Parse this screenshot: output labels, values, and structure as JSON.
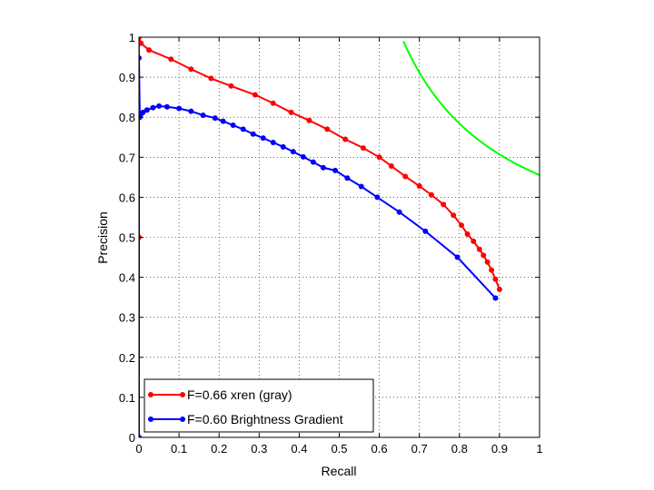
{
  "chart_data": {
    "type": "line",
    "title": "",
    "xlabel": "Recall",
    "ylabel": "Precision",
    "xlim": [
      0,
      1
    ],
    "ylim": [
      0,
      1
    ],
    "grid": true,
    "grid_style": "dotted",
    "legend_position": "bottom-left",
    "xticks": [
      "0",
      "0.1",
      "0.2",
      "0.3",
      "0.4",
      "0.5",
      "0.6",
      "0.7",
      "0.8",
      "0.9",
      "1"
    ],
    "yticks": [
      "0",
      "0.1",
      "0.2",
      "0.3",
      "0.4",
      "0.5",
      "0.6",
      "0.7",
      "0.8",
      "0.9",
      "1"
    ],
    "series": [
      {
        "name": "F=0.66 xren (gray)",
        "color": "#ff0000",
        "marker": "dot",
        "x": [
          0.0,
          0.0,
          0.0,
          0.005,
          0.025,
          0.08,
          0.13,
          0.18,
          0.23,
          0.29,
          0.335,
          0.38,
          0.425,
          0.47,
          0.515,
          0.56,
          0.6,
          0.63,
          0.665,
          0.7,
          0.73,
          0.76,
          0.785,
          0.805,
          0.82,
          0.835,
          0.85,
          0.86,
          0.87,
          0.88,
          0.89,
          0.9
        ],
        "y": [
          0.0,
          0.5,
          1.0,
          0.985,
          0.968,
          0.945,
          0.92,
          0.897,
          0.878,
          0.856,
          0.835,
          0.812,
          0.792,
          0.77,
          0.745,
          0.723,
          0.7,
          0.678,
          0.652,
          0.628,
          0.606,
          0.582,
          0.555,
          0.53,
          0.508,
          0.49,
          0.47,
          0.455,
          0.438,
          0.418,
          0.395,
          0.37
        ]
      },
      {
        "name": "F=0.60 Brightness Gradient",
        "color": "#0000ff",
        "marker": "dot",
        "x": [
          0.0,
          0.0,
          0.002,
          0.005,
          0.01,
          0.02,
          0.035,
          0.05,
          0.07,
          0.1,
          0.13,
          0.16,
          0.19,
          0.21,
          0.235,
          0.26,
          0.285,
          0.31,
          0.335,
          0.36,
          0.385,
          0.41,
          0.435,
          0.46,
          0.49,
          0.52,
          0.555,
          0.595,
          0.65,
          0.715,
          0.795,
          0.89
        ],
        "y": [
          0.0,
          0.948,
          0.8,
          0.808,
          0.812,
          0.818,
          0.824,
          0.828,
          0.826,
          0.822,
          0.815,
          0.805,
          0.798,
          0.79,
          0.78,
          0.77,
          0.758,
          0.748,
          0.737,
          0.726,
          0.714,
          0.701,
          0.688,
          0.674,
          0.667,
          0.648,
          0.627,
          0.6,
          0.563,
          0.515,
          0.45,
          0.348
        ]
      }
    ],
    "iso_f_curve": {
      "color": "#00ff00",
      "f_value": 0.792,
      "r_start": 0.66,
      "r_end": 1.0
    }
  }
}
